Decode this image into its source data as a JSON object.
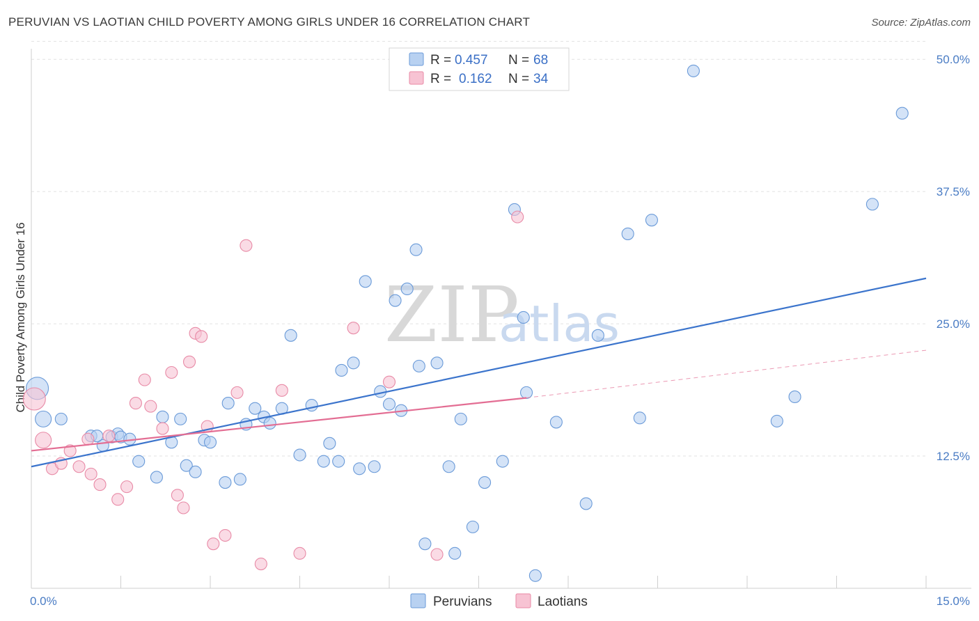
{
  "title": "PERUVIAN VS LAOTIAN CHILD POVERTY AMONG GIRLS UNDER 16 CORRELATION CHART",
  "source": "Source: ZipAtlas.com",
  "watermark": {
    "zip": "ZIP",
    "atlas": "atlas"
  },
  "colors": {
    "peruvian_fill": "#b8d1f1",
    "peruvian_stroke": "#6a9ad8",
    "peruvian_line": "#3b74cc",
    "laotian_fill": "#f7c3d3",
    "laotian_stroke": "#e88aa6",
    "laotian_line": "#e36d93",
    "tick_text": "#4a7cc4",
    "grid": "#e2e2e2"
  },
  "legend": {
    "rows": [
      {
        "r_label": "R = ",
        "r_value": "0.457",
        "n_label": "N = ",
        "n_value": "68"
      },
      {
        "r_label": "R = ",
        "r_value": "0.162",
        "n_label": "N = ",
        "n_value": "34"
      }
    ]
  },
  "chart_data": {
    "type": "scatter",
    "title": "PERUVIAN VS LAOTIAN CHILD POVERTY AMONG GIRLS UNDER 16 CORRELATION CHART",
    "xlabel": "",
    "ylabel": "Child Poverty Among Girls Under 16",
    "xlim": [
      0,
      15
    ],
    "ylim": [
      0,
      51
    ],
    "x_tick_labels": [
      {
        "value": 0,
        "label": "0.0%"
      },
      {
        "value": 15,
        "label": "15.0%"
      }
    ],
    "y_tick_labels": [
      {
        "value": 12.5,
        "label": "12.5%"
      },
      {
        "value": 25,
        "label": "25.0%"
      },
      {
        "value": 37.5,
        "label": "37.5%"
      },
      {
        "value": 50,
        "label": "50.0%"
      }
    ],
    "y_gridlines": [
      12.5,
      25,
      37.5,
      50
    ],
    "grid": true,
    "legend_position": "top-center",
    "series": [
      {
        "name": "Peruvians",
        "r": 0.457,
        "n": 68,
        "trend": {
          "x": [
            0,
            15
          ],
          "y": [
            11.5,
            29.3
          ],
          "style": "solid"
        },
        "points": [
          [
            0.1,
            18.9,
            3
          ],
          [
            0.2,
            16.0,
            2
          ],
          [
            0.5,
            16.0,
            1
          ],
          [
            1.0,
            14.4,
            1
          ],
          [
            1.2,
            13.5,
            1
          ],
          [
            1.35,
            14.3,
            1
          ],
          [
            1.1,
            14.4,
            1
          ],
          [
            1.45,
            14.6,
            1
          ],
          [
            1.8,
            12.0,
            1
          ],
          [
            1.5,
            14.3,
            1
          ],
          [
            1.65,
            14.1,
            1
          ],
          [
            2.1,
            10.5,
            1
          ],
          [
            2.2,
            16.2,
            1
          ],
          [
            2.35,
            13.8,
            1
          ],
          [
            2.5,
            16.0,
            1
          ],
          [
            2.6,
            11.6,
            1
          ],
          [
            2.75,
            11.0,
            1
          ],
          [
            2.9,
            14.0,
            1
          ],
          [
            3.0,
            13.8,
            1
          ],
          [
            3.25,
            10.0,
            1
          ],
          [
            3.3,
            17.5,
            1
          ],
          [
            3.5,
            10.3,
            1
          ],
          [
            3.6,
            15.5,
            1
          ],
          [
            3.75,
            17.0,
            1
          ],
          [
            3.9,
            16.2,
            1
          ],
          [
            4.0,
            15.6,
            1
          ],
          [
            4.2,
            17.0,
            1
          ],
          [
            4.35,
            23.9,
            1
          ],
          [
            4.5,
            12.6,
            1
          ],
          [
            4.7,
            17.3,
            1
          ],
          [
            4.9,
            12.0,
            1
          ],
          [
            5.0,
            13.7,
            1
          ],
          [
            5.15,
            12.0,
            1
          ],
          [
            5.2,
            20.6,
            1
          ],
          [
            5.4,
            21.3,
            1
          ],
          [
            5.5,
            11.3,
            1
          ],
          [
            5.6,
            29.0,
            1
          ],
          [
            5.75,
            11.5,
            1
          ],
          [
            5.85,
            18.6,
            1
          ],
          [
            6.0,
            17.4,
            1
          ],
          [
            6.1,
            27.2,
            1
          ],
          [
            6.2,
            16.8,
            1
          ],
          [
            6.3,
            28.3,
            1
          ],
          [
            6.45,
            32.0,
            1
          ],
          [
            6.5,
            21.0,
            1
          ],
          [
            6.6,
            4.2,
            1
          ],
          [
            6.8,
            21.3,
            1
          ],
          [
            7.0,
            11.5,
            1
          ],
          [
            7.1,
            3.3,
            1
          ],
          [
            7.2,
            16.0,
            1
          ],
          [
            7.4,
            5.8,
            1
          ],
          [
            7.6,
            10.0,
            1
          ],
          [
            7.9,
            12.0,
            1
          ],
          [
            8.1,
            35.8,
            1
          ],
          [
            8.25,
            25.6,
            1
          ],
          [
            8.3,
            18.5,
            1
          ],
          [
            8.45,
            1.2,
            1
          ],
          [
            8.8,
            15.7,
            1
          ],
          [
            9.3,
            8.0,
            1
          ],
          [
            9.5,
            23.9,
            1
          ],
          [
            10.0,
            33.5,
            1
          ],
          [
            10.2,
            16.1,
            1
          ],
          [
            10.4,
            34.8,
            1
          ],
          [
            11.1,
            48.9,
            1
          ],
          [
            12.5,
            15.8,
            1
          ],
          [
            12.8,
            18.1,
            1
          ],
          [
            14.1,
            36.3,
            1
          ],
          [
            14.6,
            44.9,
            1
          ]
        ]
      },
      {
        "name": "Laotians",
        "r": 0.162,
        "n": 34,
        "trend": {
          "x": [
            0,
            8.3
          ],
          "y": [
            13.0,
            18.0
          ],
          "style": "solid"
        },
        "trend_extension": {
          "x": [
            8.3,
            15
          ],
          "y": [
            18.0,
            22.5
          ],
          "style": "dashed"
        },
        "points": [
          [
            0.05,
            17.9,
            3
          ],
          [
            0.2,
            14.0,
            2
          ],
          [
            0.35,
            11.3,
            1
          ],
          [
            0.5,
            11.8,
            1
          ],
          [
            0.65,
            13.0,
            1
          ],
          [
            0.8,
            11.5,
            1
          ],
          [
            0.95,
            14.1,
            1
          ],
          [
            1.0,
            10.8,
            1
          ],
          [
            1.15,
            9.8,
            1
          ],
          [
            1.3,
            14.4,
            1
          ],
          [
            1.45,
            8.4,
            1
          ],
          [
            1.6,
            9.6,
            1
          ],
          [
            1.75,
            17.5,
            1
          ],
          [
            1.9,
            19.7,
            1
          ],
          [
            2.0,
            17.2,
            1
          ],
          [
            2.2,
            15.1,
            1
          ],
          [
            2.35,
            20.4,
            1
          ],
          [
            2.45,
            8.8,
            1
          ],
          [
            2.55,
            7.6,
            1
          ],
          [
            2.65,
            21.4,
            1
          ],
          [
            2.75,
            24.1,
            1
          ],
          [
            2.85,
            23.8,
            1
          ],
          [
            2.95,
            15.3,
            1
          ],
          [
            3.05,
            4.2,
            1
          ],
          [
            3.25,
            5.0,
            1
          ],
          [
            3.45,
            18.5,
            1
          ],
          [
            3.6,
            32.4,
            1
          ],
          [
            3.85,
            2.3,
            1
          ],
          [
            4.2,
            18.7,
            1
          ],
          [
            4.5,
            3.3,
            1
          ],
          [
            5.4,
            24.6,
            1
          ],
          [
            6.0,
            19.5,
            1
          ],
          [
            6.8,
            3.2,
            1
          ],
          [
            8.15,
            35.1,
            1
          ]
        ]
      }
    ]
  }
}
